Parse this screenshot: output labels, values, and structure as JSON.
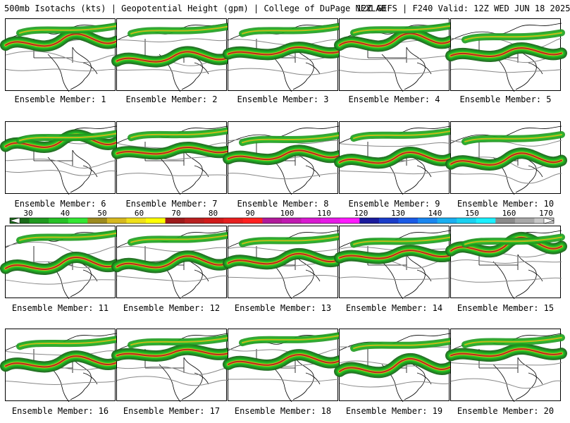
{
  "header": {
    "left": "500mb Isotachs (kts) | Geopotential Height (gpm) | College of DuPage NEXLAB",
    "right": "12Z GEFS | F240 Valid: 12Z WED JUN 18 2025"
  },
  "colorbar": {
    "labels": [
      "30",
      "40",
      "50",
      "60",
      "70",
      "80",
      "90",
      "100",
      "110",
      "120",
      "130",
      "140",
      "150",
      "160",
      "170"
    ],
    "colors": [
      "#1a6b1a",
      "#1f9a1f",
      "#26c126",
      "#33e633",
      "#9c8a1f",
      "#d6b81f",
      "#f0e01a",
      "#ffff00",
      "#9c1a1a",
      "#b81f1f",
      "#d01a1a",
      "#e61f1f",
      "#ff2020",
      "#b01a9a",
      "#c01ab0",
      "#d81ad0",
      "#e61ae6",
      "#ff1aff",
      "#1a1a9c",
      "#1a3cc8",
      "#1a5ae6",
      "#1a86f0",
      "#1aaef0",
      "#1ad0f0",
      "#1af0ff",
      "#8a8a8a",
      "#a8a8a8",
      "#c8c8c8"
    ]
  },
  "members": [
    {
      "label": "Ensemble Member: 1"
    },
    {
      "label": "Ensemble Member: 2"
    },
    {
      "label": "Ensemble Member: 3"
    },
    {
      "label": "Ensemble Member: 4"
    },
    {
      "label": "Ensemble Member: 5"
    },
    {
      "label": "Ensemble Member: 6"
    },
    {
      "label": "Ensemble Member: 7"
    },
    {
      "label": "Ensemble Member: 8"
    },
    {
      "label": "Ensemble Member: 9"
    },
    {
      "label": "Ensemble Member: 10"
    },
    {
      "label": "Ensemble Member: 11"
    },
    {
      "label": "Ensemble Member: 12"
    },
    {
      "label": "Ensemble Member: 13"
    },
    {
      "label": "Ensemble Member: 14"
    },
    {
      "label": "Ensemble Member: 15"
    },
    {
      "label": "Ensemble Member: 16"
    },
    {
      "label": "Ensemble Member: 17"
    },
    {
      "label": "Ensemble Member: 18"
    },
    {
      "label": "Ensemble Member: 19"
    },
    {
      "label": "Ensemble Member: 20"
    }
  ]
}
